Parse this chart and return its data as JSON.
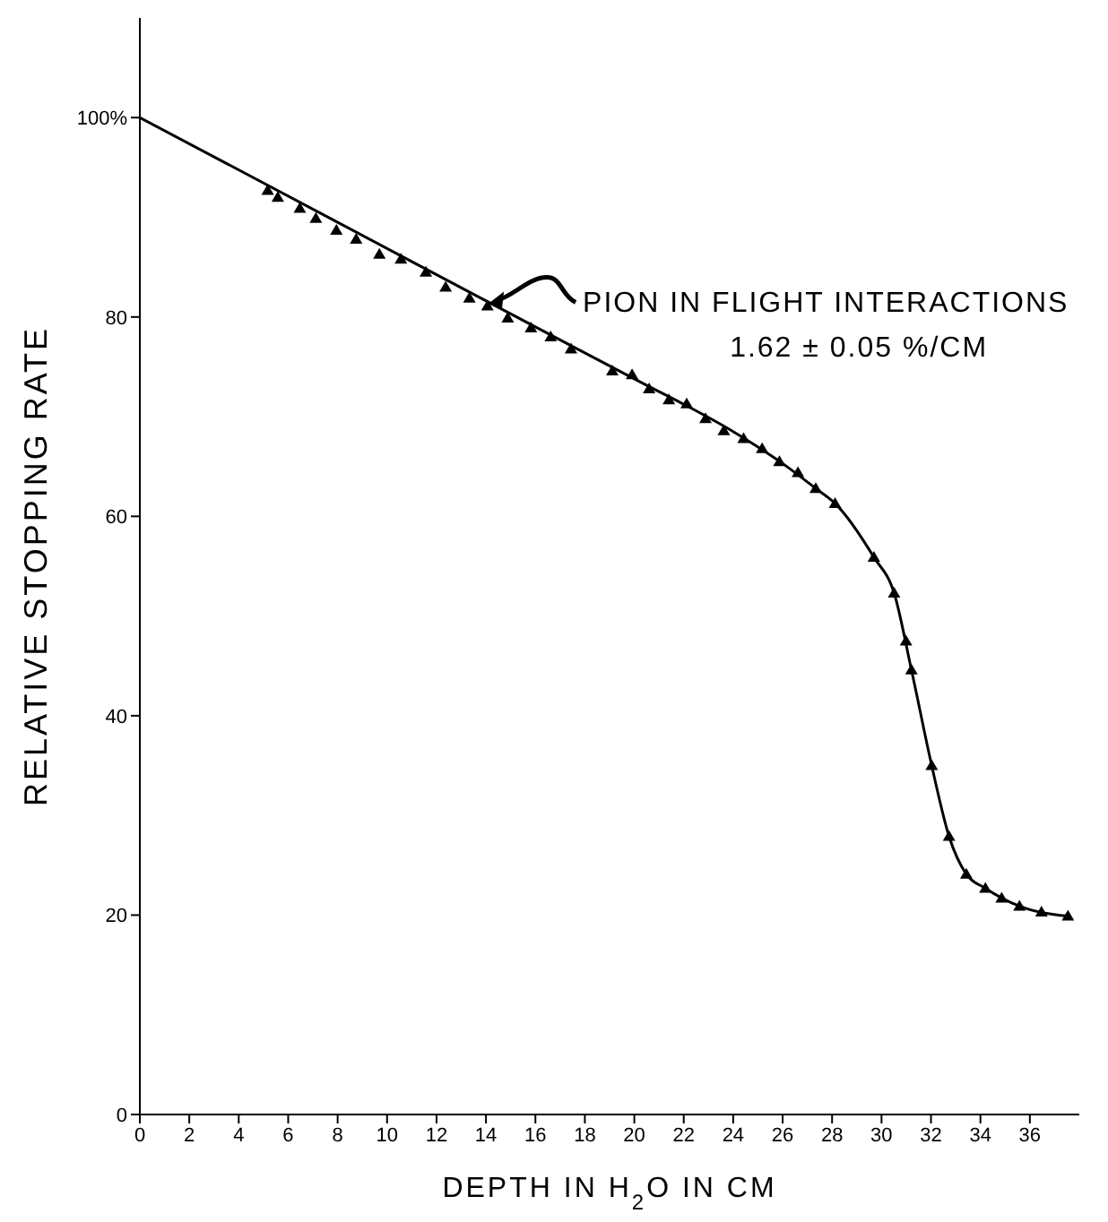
{
  "chart_data": {
    "type": "scatter",
    "xlabel": "DEPTH IN H$_{2}$O IN CM",
    "ylabel": "RELATIVE STOPPING RATE",
    "annotations": [
      {
        "text": "PION IN FLIGHT INTERACTIONS",
        "x": 14,
        "y": 81.1
      },
      "1.62 ± 0.05 %/CM"
    ],
    "xlim": [
      0,
      38
    ],
    "xticks": [
      0,
      2,
      4,
      6,
      8,
      10,
      12,
      14,
      16,
      18,
      20,
      22,
      24,
      26,
      28,
      30,
      32,
      34,
      36
    ],
    "ylim": [
      0,
      110
    ],
    "yticks": [
      0,
      20,
      40,
      60,
      80,
      {
        "value": 100,
        "label": "100%"
      }
    ],
    "grid": false,
    "series": [
      {
        "marker": "triangle",
        "color": "#000000",
        "x": [
          5.17,
          5.58,
          6.47,
          7.12,
          7.95,
          8.75,
          9.69,
          10.56,
          11.57,
          12.37,
          13.33,
          14.06,
          14.88,
          15.82,
          16.62,
          17.44,
          19.11,
          19.91,
          20.6,
          21.4,
          22.12,
          22.88,
          23.62,
          24.42,
          25.17,
          25.87,
          26.62,
          27.34,
          28.12,
          29.69,
          30.51,
          30.99,
          31.21,
          32.03,
          32.73,
          33.43,
          34.2,
          34.86,
          35.58,
          36.47,
          37.54
        ],
        "values": [
          92.7,
          92.0,
          90.9,
          89.9,
          88.7,
          87.8,
          86.3,
          85.8,
          84.5,
          83.0,
          81.9,
          81.1,
          79.9,
          78.9,
          78.0,
          76.8,
          74.6,
          74.2,
          72.8,
          71.7,
          71.3,
          69.8,
          68.6,
          67.8,
          66.8,
          65.5,
          64.4,
          62.8,
          61.3,
          55.9,
          52.3,
          47.5,
          44.6,
          35.0,
          27.9,
          24.1,
          22.7,
          21.7,
          20.9,
          20.3,
          19.9
        ]
      },
      {
        "type": "line",
        "marker": "none",
        "color": "#000000",
        "x": [
          0,
          8,
          16,
          20,
          24,
          26,
          27.34,
          28.12,
          29.69,
          30.51,
          31.21,
          32.03,
          32.73,
          33.43,
          34.2,
          35.58,
          37.54
        ],
        "values": [
          100,
          89.5,
          79.0,
          73.8,
          68.5,
          65.3,
          62.8,
          61.3,
          55.9,
          52.3,
          44.6,
          35.0,
          27.9,
          24.1,
          22.7,
          20.9,
          19.9
        ]
      }
    ]
  }
}
